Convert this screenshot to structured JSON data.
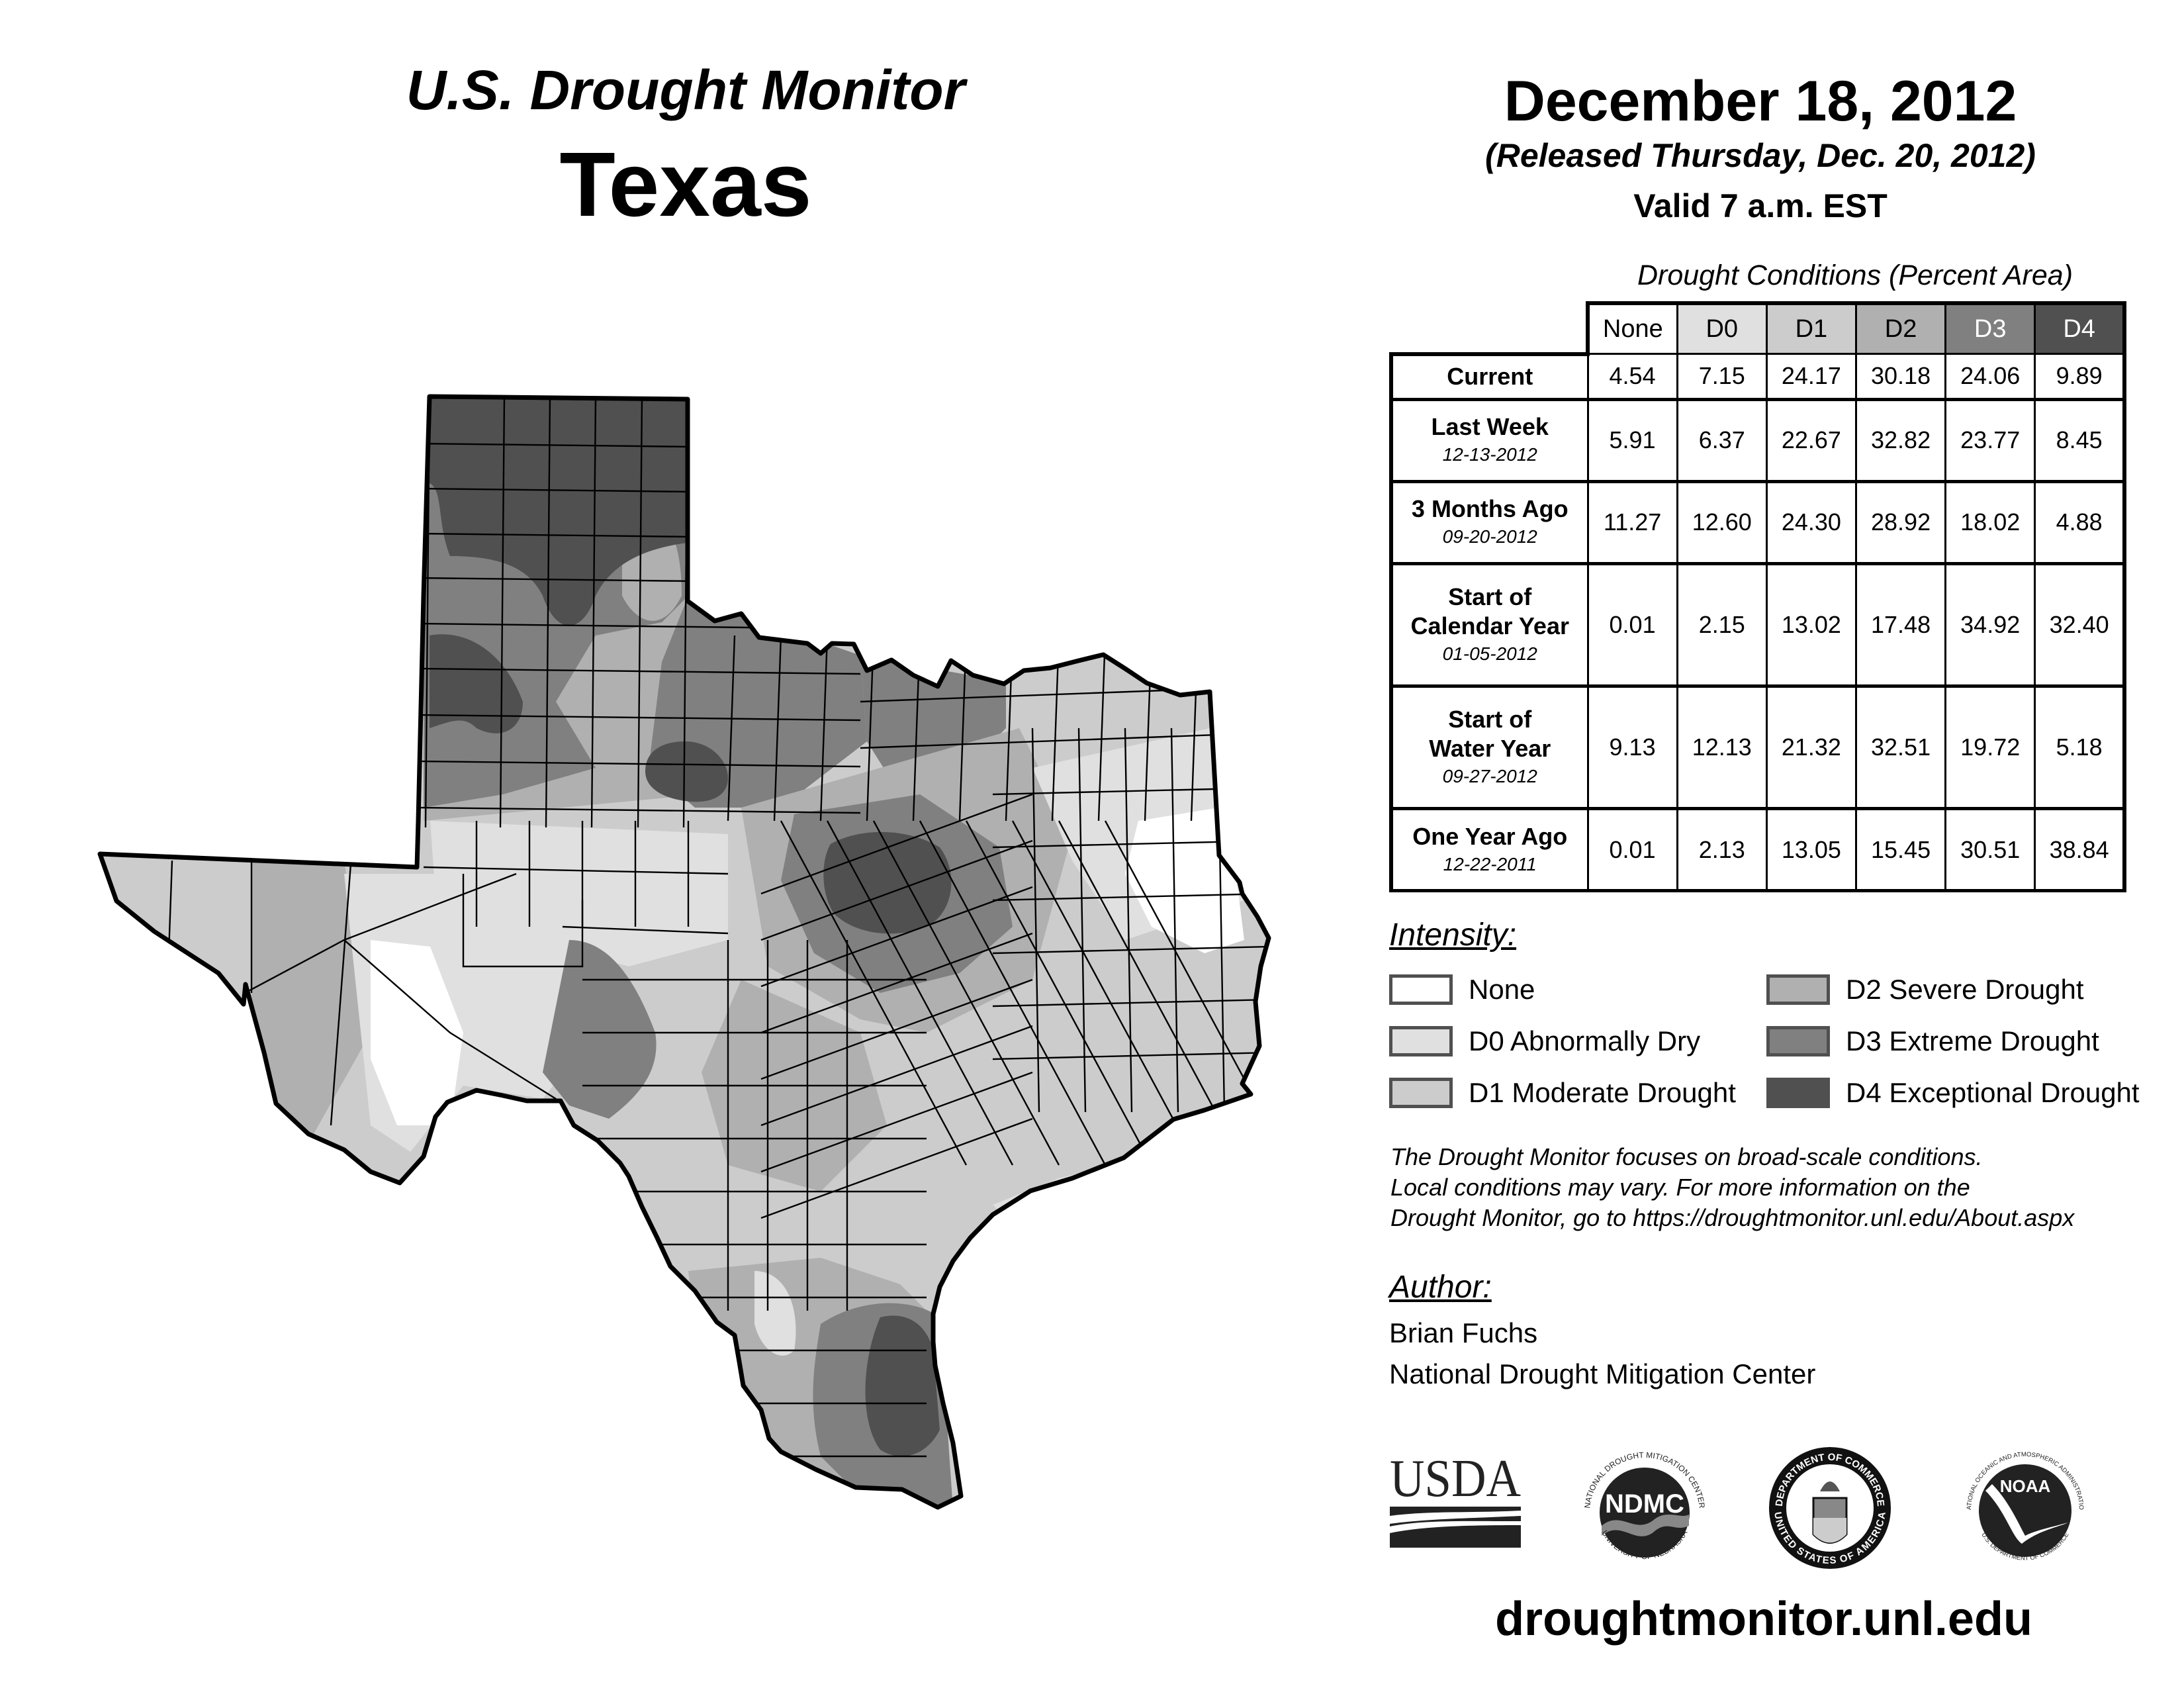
{
  "header": {
    "brand_title": "U.S. Drought Monitor",
    "state_title": "Texas",
    "valid_date": "December 18, 2012",
    "release_line": "(Released Thursday, Dec. 20, 2012)",
    "valid_time": "Valid 7 a.m. EST"
  },
  "table": {
    "caption": "Drought Conditions (Percent Area)",
    "columns": [
      "None",
      "D0",
      "D1",
      "D2",
      "D3",
      "D4"
    ],
    "rows": [
      {
        "label": "Current",
        "date": "",
        "values": [
          "4.54",
          "7.15",
          "24.17",
          "30.18",
          "24.06",
          "9.89"
        ]
      },
      {
        "label": "Last Week",
        "date": "12-13-2012",
        "values": [
          "5.91",
          "6.37",
          "22.67",
          "32.82",
          "23.77",
          "8.45"
        ]
      },
      {
        "label": "3 Months Ago",
        "date": "09-20-2012",
        "values": [
          "11.27",
          "12.60",
          "24.30",
          "28.92",
          "18.02",
          "4.88"
        ]
      },
      {
        "label_line1": "Start of",
        "label": "Calendar Year",
        "date": "01-05-2012",
        "values": [
          "0.01",
          "2.15",
          "13.02",
          "17.48",
          "34.92",
          "32.40"
        ]
      },
      {
        "label_line1": "Start of",
        "label": "Water Year",
        "date": "09-27-2012",
        "values": [
          "9.13",
          "12.13",
          "21.32",
          "32.51",
          "19.72",
          "5.18"
        ]
      },
      {
        "label": "One Year Ago",
        "date": "12-22-2011",
        "values": [
          "0.01",
          "2.13",
          "13.05",
          "15.45",
          "30.51",
          "38.84"
        ]
      }
    ]
  },
  "legend": {
    "heading": "Intensity:",
    "items": [
      {
        "label": "None",
        "color": "#ffffff"
      },
      {
        "label": "D0 Abnormally Dry",
        "color": "#e0e0e0"
      },
      {
        "label": "D1 Moderate Drought",
        "color": "#cccccc"
      },
      {
        "label": "D2 Severe Drought",
        "color": "#b0b0b0"
      },
      {
        "label": "D3 Extreme Drought",
        "color": "#808080"
      },
      {
        "label": "D4 Exceptional Drought",
        "color": "#505050"
      }
    ],
    "header_colors": [
      "#ffffff",
      "#e0e0e0",
      "#cccccc",
      "#b0b0b0",
      "#808080",
      "#505050"
    ],
    "header_text_colors": [
      "#000000",
      "#000000",
      "#000000",
      "#000000",
      "#ffffff",
      "#ffffff"
    ]
  },
  "disclaimer": [
    "The Drought Monitor focuses on broad-scale conditions.",
    "Local conditions may vary. For more information on the",
    "Drought Monitor, go to https://droughtmonitor.unl.edu/About.aspx"
  ],
  "author": {
    "heading": "Author:",
    "name": "Brian Fuchs",
    "organization": "National Drought Mitigation Center"
  },
  "logos": {
    "usda": "USDA",
    "ndmc": "NDMC",
    "ndmc_ring_top": "NATIONAL DROUGHT MITIGATION CENTER",
    "ndmc_ring_bottom": "UNIVERSITY OF NEBRASKA",
    "doc_ring_top": "DEPARTMENT OF COMMERCE",
    "doc_ring_bottom": "UNITED STATES OF AMERICA",
    "noaa": "NOAA",
    "noaa_ring_top": "NATIONAL OCEANIC AND ATMOSPHERIC ADMINISTRATION",
    "noaa_ring_bottom": "U.S. DEPARTMENT OF COMMERCE"
  },
  "footer": {
    "site_url": "droughtmonitor.unl.edu"
  },
  "map": {
    "region": "Texas",
    "colors": {
      "none": "#ffffff",
      "d0": "#e0e0e0",
      "d1": "#cccccc",
      "d2": "#b0b0b0",
      "d3": "#808080",
      "d4": "#505050",
      "outline": "#000000"
    }
  }
}
